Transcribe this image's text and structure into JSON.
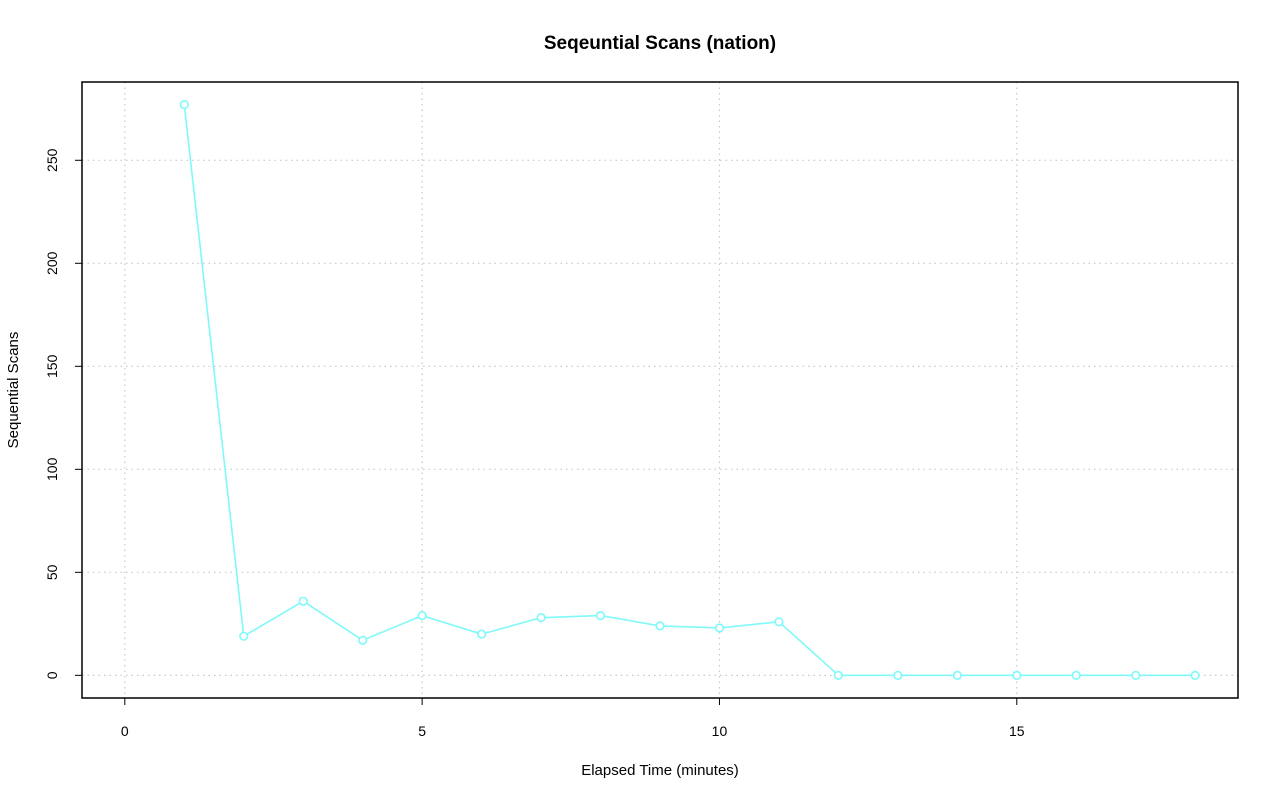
{
  "chart_data": {
    "type": "line",
    "title": "Seqeuntial Scans (nation)",
    "xlabel": "Elapsed Time (minutes)",
    "ylabel": "Sequential Scans",
    "xlim": [
      -0.72,
      18.72
    ],
    "ylim": [
      -11,
      288
    ],
    "x_ticks": [
      0,
      5,
      10,
      15
    ],
    "x_tick_labels": [
      "0",
      "5",
      "10",
      "15"
    ],
    "y_ticks": [
      0,
      50,
      100,
      150,
      200,
      250
    ],
    "y_tick_labels": [
      "0",
      "50",
      "100",
      "150",
      "200",
      "250"
    ],
    "grid": true,
    "series": [
      {
        "color": "#7ff9f9",
        "marker": "open-circle",
        "x": [
          1,
          2,
          3,
          4,
          5,
          6,
          7,
          8,
          9,
          10,
          11,
          12,
          13,
          14,
          15,
          16,
          17,
          18
        ],
        "values": [
          277,
          19,
          36,
          17,
          29,
          20,
          28,
          29,
          24,
          23,
          26,
          0,
          0,
          0,
          0,
          0,
          0,
          0
        ]
      }
    ]
  }
}
